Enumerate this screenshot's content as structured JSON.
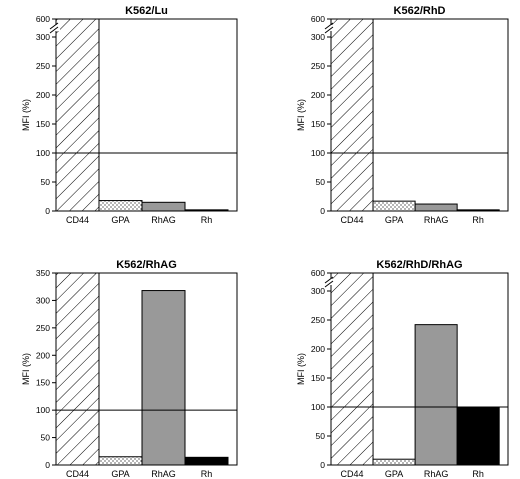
{
  "chart_data": [
    {
      "type": "bar",
      "title": "K562/Lu",
      "ylabel": "MFI (%)",
      "xlabel": "",
      "categories": [
        "CD44",
        "GPA",
        "RhAG",
        "Rh"
      ],
      "values": [
        600,
        18,
        15,
        2
      ],
      "yticks": [
        0,
        50,
        100,
        150,
        200,
        250,
        300,
        600
      ],
      "axis_break": true,
      "reference_line": 100
    },
    {
      "type": "bar",
      "title": "K562/RhD",
      "ylabel": "MFI (%)",
      "xlabel": "",
      "categories": [
        "CD44",
        "GPA",
        "RhAG",
        "Rh"
      ],
      "values": [
        600,
        17,
        12,
        2
      ],
      "yticks": [
        0,
        50,
        100,
        150,
        200,
        250,
        300,
        600
      ],
      "axis_break": true,
      "reference_line": 100
    },
    {
      "type": "bar",
      "title": "K562/RhAG",
      "ylabel": "MFI (%)",
      "xlabel": "",
      "categories": [
        "CD44",
        "GPA",
        "RhAG",
        "Rh"
      ],
      "values": [
        350,
        15,
        318,
        14
      ],
      "yticks": [
        0,
        50,
        100,
        150,
        200,
        250,
        300,
        350
      ],
      "axis_break": false,
      "reference_line": 100
    },
    {
      "type": "bar",
      "title": "K562/RhD/RhAG",
      "ylabel": "MFI (%)",
      "xlabel": "",
      "categories": [
        "CD44",
        "GPA",
        "RhAG",
        "Rh"
      ],
      "values": [
        600,
        10,
        242,
        100
      ],
      "yticks": [
        0,
        50,
        100,
        150,
        200,
        250,
        300,
        600
      ],
      "axis_break": true,
      "reference_line": 100
    }
  ],
  "bar_fills": [
    "hatch",
    "dots",
    "#999999",
    "#000000"
  ]
}
